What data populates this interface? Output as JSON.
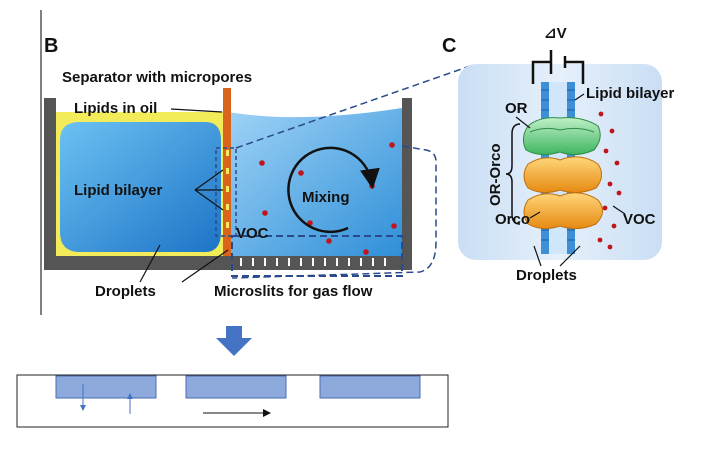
{
  "panels": {
    "b": "B",
    "c": "C"
  },
  "labels": {
    "separator": "Separator with micropores",
    "lipids_in_oil": "Lipids in oil",
    "lipid_bilayer_b": "Lipid bilayer",
    "mixing": "Mixing",
    "voc_b": "VOC",
    "droplets_b": "Droplets",
    "microslits": "Microslits for gas flow",
    "voltage": "⊿V",
    "lipid_bilayer_c": "Lipid bilayer",
    "or": "OR",
    "or_orco": "OR-Orco",
    "orco": "Orco",
    "voc_c": "VOC",
    "droplets_c": "Droplets"
  },
  "colors": {
    "water": "#5aa9e6",
    "oil": "#f3ec5a",
    "separator": "#d9651c",
    "chamber_wall": "#555555",
    "voc_dot": "#c0161b",
    "schematic_block": "#8ea9db",
    "arrow_down": "#4472c4"
  }
}
